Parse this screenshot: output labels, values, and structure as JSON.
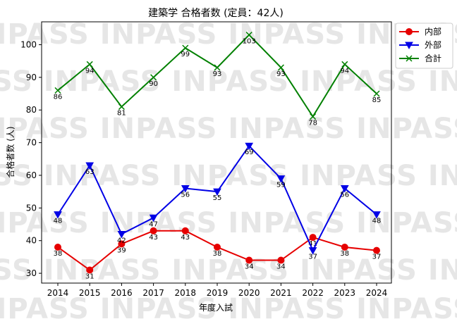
{
  "watermark": "INPASS",
  "chart_data": {
    "type": "line",
    "title": "建築学 合格者数 (定員：42人)",
    "xlabel": "年度入試",
    "ylabel": "合格者数 (人)",
    "categories": [
      "2014",
      "2015",
      "2016",
      "2017",
      "2018",
      "2019",
      "2020",
      "2021",
      "2022",
      "2023",
      "2024"
    ],
    "ylim": [
      27,
      107
    ],
    "yticks": [
      30,
      40,
      50,
      60,
      70,
      80,
      90,
      100
    ],
    "grid": false,
    "legend_position": "top-right",
    "series": [
      {
        "name": "内部",
        "color": "#e60000",
        "marker": "circle",
        "values": [
          38,
          31,
          39,
          43,
          43,
          38,
          34,
          34,
          41,
          38,
          37
        ]
      },
      {
        "name": "外部",
        "color": "#0000e6",
        "marker": "triangle-down",
        "values": [
          48,
          63,
          42,
          47,
          56,
          55,
          69,
          59,
          37,
          56,
          48
        ]
      },
      {
        "name": "合計",
        "color": "#008000",
        "marker": "x",
        "values": [
          86,
          94,
          81,
          90,
          99,
          93,
          103,
          93,
          78,
          94,
          85
        ]
      }
    ]
  }
}
